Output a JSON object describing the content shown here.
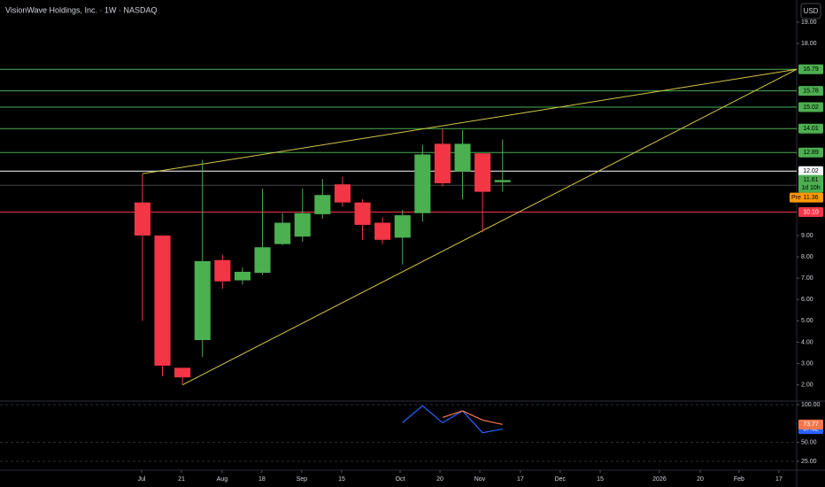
{
  "header": {
    "title": "VisionWave Holdings, Inc. · 1W · NASDAQ",
    "currency": "USD"
  },
  "chart_data": [
    {
      "type": "candlestick",
      "x": [
        0,
        1,
        2,
        3,
        4,
        5,
        6,
        7,
        8,
        9,
        10,
        11,
        12,
        13,
        14,
        15,
        16,
        17,
        18
      ],
      "open": [
        10.55,
        9.0,
        2.8,
        4.1,
        7.85,
        6.9,
        7.25,
        8.6,
        8.95,
        10.0,
        11.4,
        10.55,
        9.6,
        8.9,
        10.05,
        13.3,
        12.0,
        12.85,
        11.5
      ],
      "high": [
        11.9,
        9.0,
        2.8,
        12.55,
        8.1,
        7.5,
        11.2,
        10.05,
        11.2,
        11.65,
        11.75,
        10.7,
        9.85,
        10.2,
        13.25,
        14.0,
        13.95,
        12.85,
        13.5
      ],
      "low": [
        5.0,
        2.4,
        2.0,
        3.3,
        6.5,
        6.7,
        7.15,
        8.55,
        8.7,
        9.8,
        10.35,
        8.8,
        8.6,
        7.65,
        9.65,
        11.3,
        10.7,
        9.15,
        11.05
      ],
      "close": [
        9.0,
        2.9,
        2.35,
        7.8,
        6.85,
        7.3,
        8.45,
        9.6,
        10.05,
        10.9,
        10.55,
        9.5,
        8.8,
        9.95,
        12.8,
        11.45,
        13.3,
        11.05,
        11.6
      ],
      "up_color": "#4caf50",
      "down_color": "#f23645",
      "xlim": [
        -7.12,
        32.7
      ],
      "ylim": [
        1.28,
        20.04
      ],
      "yticks": [
        {
          "value": 19,
          "label": "19.00"
        },
        {
          "value": 18,
          "label": "18.00"
        },
        {
          "value": 9,
          "label": "9.00"
        },
        {
          "value": 8,
          "label": "8.00"
        },
        {
          "value": 7,
          "label": "7.00"
        },
        {
          "value": 6,
          "label": "6.00"
        },
        {
          "value": 5,
          "label": "5.00"
        },
        {
          "value": 4,
          "label": "4.00"
        },
        {
          "value": 3,
          "label": "3.00"
        },
        {
          "value": 2,
          "label": "2.00"
        }
      ],
      "xticks": [
        {
          "value": -0.04,
          "label": "Jul"
        },
        {
          "value": 1.95,
          "label": "21"
        },
        {
          "value": 3.98,
          "label": "Aug"
        },
        {
          "value": 5.97,
          "label": "18"
        },
        {
          "value": 7.96,
          "label": "Sep"
        },
        {
          "value": 9.96,
          "label": "15"
        },
        {
          "value": 12.88,
          "label": "Oct"
        },
        {
          "value": 14.87,
          "label": "20"
        },
        {
          "value": 16.86,
          "label": "Nov"
        },
        {
          "value": 18.89,
          "label": "17"
        },
        {
          "value": 20.88,
          "label": "Dec"
        },
        {
          "value": 22.88,
          "label": "15"
        },
        {
          "value": 25.84,
          "label": "2026"
        },
        {
          "value": 27.88,
          "label": "20"
        },
        {
          "value": 29.82,
          "label": "Feb"
        },
        {
          "value": 31.81,
          "label": "17"
        }
      ],
      "levels": [
        {
          "value": 16.79,
          "color": "#4caf50"
        },
        {
          "value": 15.78,
          "color": "#4caf50"
        },
        {
          "value": 15.02,
          "color": "#4caf50"
        },
        {
          "value": 14.01,
          "color": "#4caf50"
        },
        {
          "value": 12.89,
          "color": "#4caf50"
        },
        {
          "value": 12.02,
          "color": "#ffffff"
        },
        {
          "value": 10.1,
          "label": "10.10",
          "color": "#f23645"
        }
      ],
      "last_price": {
        "value": 11.61,
        "countdown": "1d 10h",
        "color": "#4caf50"
      },
      "premarket": {
        "label": "Pre",
        "value": 11.36,
        "color": "#ff9800"
      },
      "trendlines": [
        {
          "color": "#d4c84a",
          "x": [
            0,
            32.7
          ],
          "y": [
            11.9,
            16.79
          ]
        },
        {
          "color": "#d4c84a",
          "x": [
            2,
            32.7
          ],
          "y": [
            2.0,
            16.79
          ]
        }
      ]
    },
    {
      "type": "line",
      "x": [
        13,
        14,
        15,
        16,
        17,
        18
      ],
      "ylim": [
        14.4,
        102.3
      ],
      "yticks": [
        {
          "value": 100,
          "label": "100.00"
        },
        {
          "value": 50,
          "label": "50.00"
        },
        {
          "value": 25,
          "label": "25.00"
        }
      ],
      "series": [
        {
          "color": "#2962ff",
          "values": [
            76.2,
            98.5,
            76.0,
            91.7,
            62.8,
            67.62
          ]
        },
        {
          "color": "#f7774a",
          "values": [
            null,
            null,
            83.0,
            91.7,
            79.5,
            73.77
          ]
        }
      ]
    }
  ]
}
